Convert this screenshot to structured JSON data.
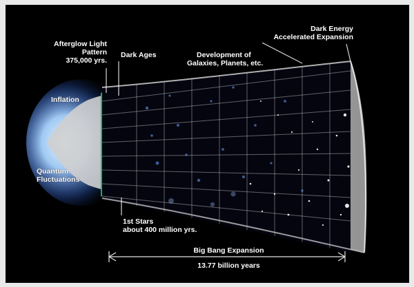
{
  "labels": {
    "afterglow": [
      "Afterglow Light",
      "Pattern",
      "375,000 yrs."
    ],
    "dark_ages": "Dark Ages",
    "development": [
      "Development of",
      "Galaxies, Planets, etc."
    ],
    "dark_energy": [
      "Dark Energy",
      "Accelerated Expansion"
    ],
    "inflation": "Inflation",
    "quantum": [
      "Quantum",
      "Fluctuations"
    ],
    "first_stars": [
      "1st Stars",
      "about 400 million yrs."
    ],
    "big_bang": "Big Bang Expansion",
    "duration": "13.77 billion years"
  },
  "colors": {
    "background": "#000000",
    "surround": "#e9e9e9",
    "funnel_gray": "#b9b9b9",
    "glow_blue": "#7fb6ff",
    "cmb_green": "#29c46a",
    "text": "#ffffff"
  },
  "icons": {
    "arrow_left": "arrow-left-icon",
    "arrow_right": "arrow-right-icon"
  }
}
